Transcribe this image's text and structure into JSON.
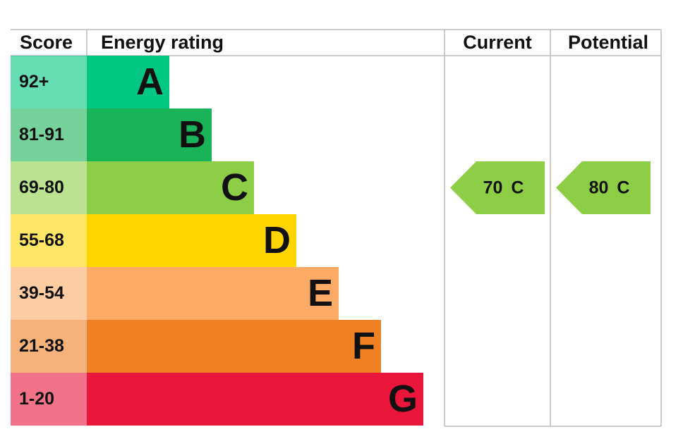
{
  "headers": {
    "score": "Score",
    "rating": "Energy rating",
    "current": "Current",
    "potential": "Potential"
  },
  "bands": [
    {
      "score": "92+",
      "letter": "A",
      "color": "#00c781"
    },
    {
      "score": "81-91",
      "letter": "B",
      "color": "#19b459"
    },
    {
      "score": "69-80",
      "letter": "C",
      "color": "#8dce46"
    },
    {
      "score": "55-68",
      "letter": "D",
      "color": "#ffd500"
    },
    {
      "score": "39-54",
      "letter": "E",
      "color": "#fcaa65"
    },
    {
      "score": "21-38",
      "letter": "F",
      "color": "#ef8023"
    },
    {
      "score": "1-20",
      "letter": "G",
      "color": "#e9153b"
    }
  ],
  "current": {
    "score": 70,
    "band": "C"
  },
  "potential": {
    "score": 80,
    "band": "C"
  }
}
